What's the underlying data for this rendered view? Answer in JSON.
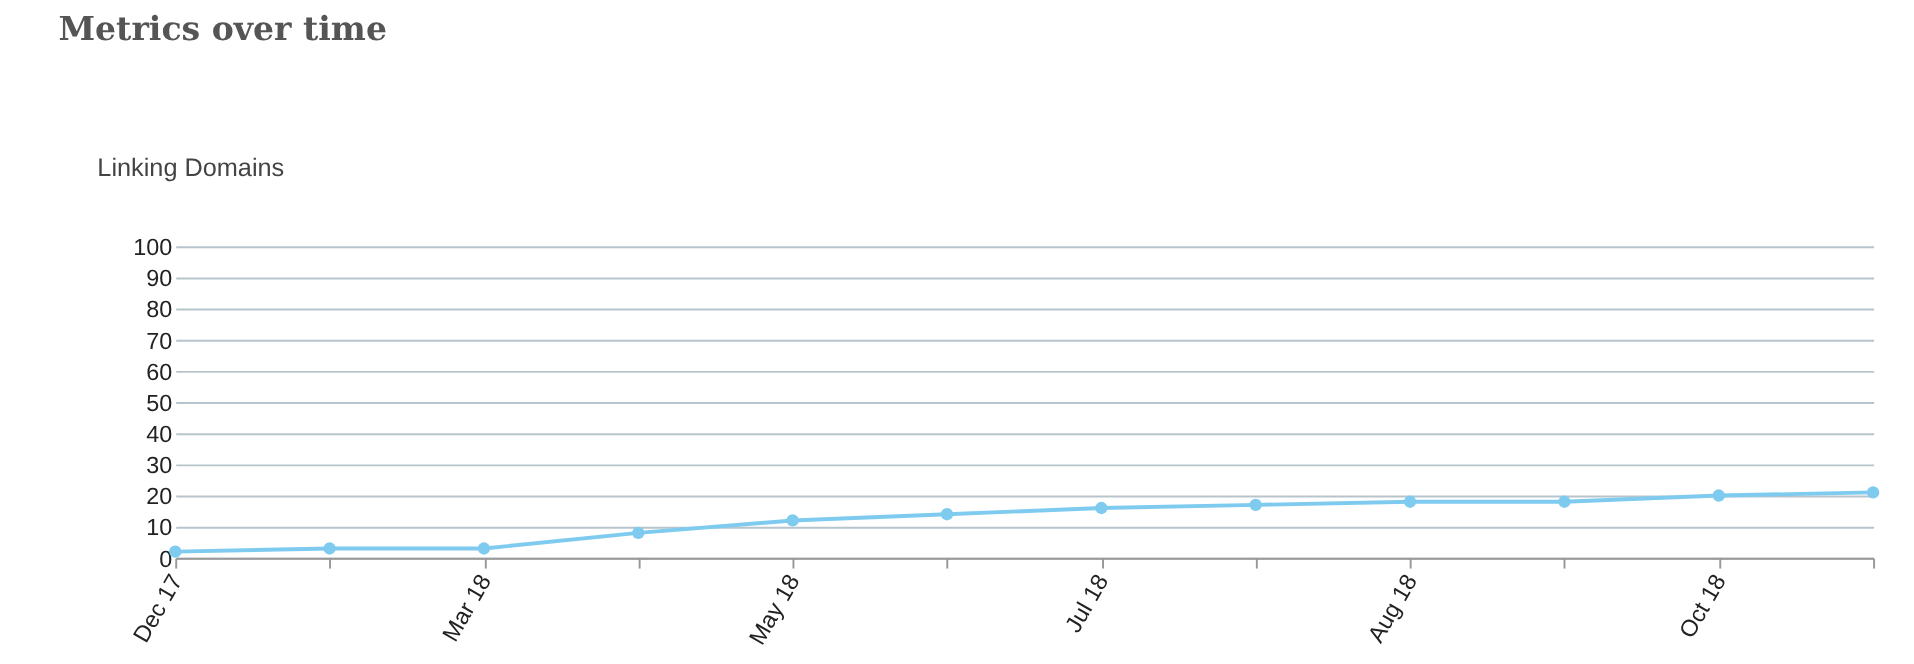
{
  "chart_data": {
    "type": "line",
    "title": "Metrics over time",
    "annotations": [
      "Linking Domains"
    ],
    "categories": [
      "Dec 17",
      null,
      "Mar 18",
      null,
      "May 18",
      null,
      "Jul 18",
      null,
      "Aug 18",
      null,
      "Oct 18",
      null
    ],
    "series": [
      {
        "color": "#7ecbef",
        "values": [
          2,
          3,
          3,
          8,
          12,
          14,
          16,
          17,
          18,
          18,
          20,
          21
        ]
      }
    ],
    "ylim": [
      0,
      100
    ],
    "yticks": [
      0,
      10,
      20,
      30,
      40,
      50,
      60,
      70,
      80,
      90,
      100
    ],
    "grid": "y",
    "marker": "circle",
    "line_style": "solid"
  }
}
